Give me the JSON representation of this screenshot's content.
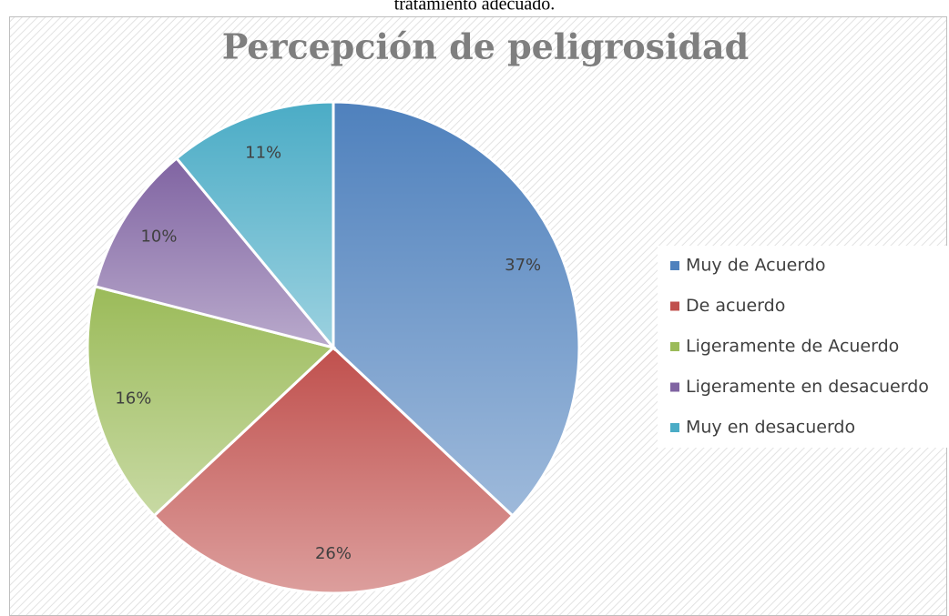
{
  "document_text": "tratamiento adecuado.",
  "chart_data": {
    "type": "pie",
    "title": "Percepción de peligrosidad",
    "categories": [
      "Muy de Acuerdo",
      "De acuerdo",
      "Ligeramente de Acuerdo",
      "Ligeramente en desacuerdo",
      "Muy en desacuerdo"
    ],
    "values": [
      37,
      26,
      16,
      10,
      11
    ],
    "value_labels": [
      "37%",
      "26%",
      "16%",
      "10%",
      "11%"
    ],
    "colors": [
      "#4f81bd",
      "#c0504d",
      "#9bbb59",
      "#8064a2",
      "#4bacc6"
    ],
    "legend": "right"
  }
}
